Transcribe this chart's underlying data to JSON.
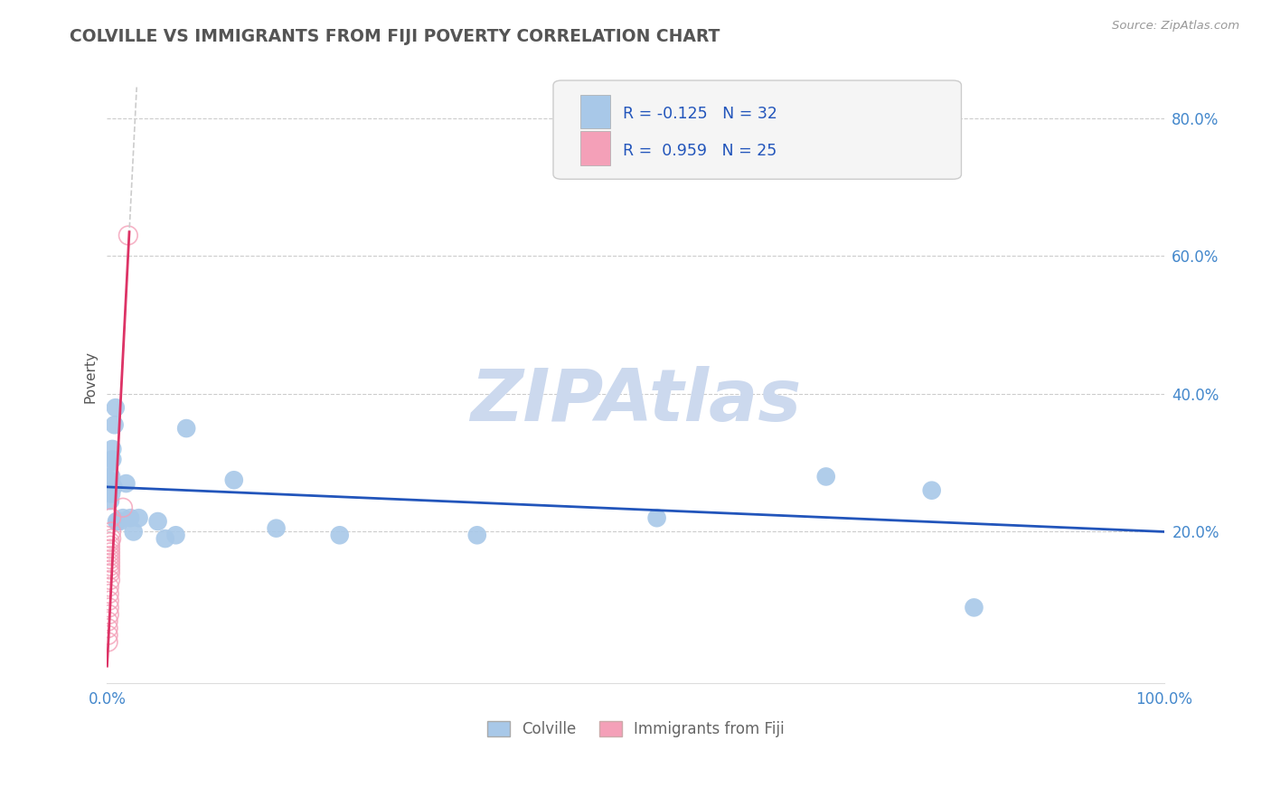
{
  "title": "COLVILLE VS IMMIGRANTS FROM FIJI POVERTY CORRELATION CHART",
  "source": "Source: ZipAtlas.com",
  "ylabel": "Poverty",
  "xlim": [
    0,
    1.0
  ],
  "ylim": [
    -0.02,
    0.87
  ],
  "xticks": [
    0.0,
    0.2,
    0.4,
    0.6,
    0.8,
    1.0
  ],
  "xtick_labels": [
    "0.0%",
    "",
    "",
    "",
    "",
    "100.0%"
  ],
  "yticks": [
    0.2,
    0.4,
    0.6,
    0.8
  ],
  "ytick_labels": [
    "20.0%",
    "40.0%",
    "60.0%",
    "80.0%"
  ],
  "colville_color": "#a8c8e8",
  "fiji_color": "#f4a0b8",
  "colville_line_color": "#2255bb",
  "fiji_line_color": "#dd3366",
  "fiji_dash_color": "#cccccc",
  "colville_R": -0.125,
  "colville_N": 32,
  "fiji_R": 0.959,
  "fiji_N": 25,
  "grid_color": "#cccccc",
  "background_color": "#ffffff",
  "title_color": "#555555",
  "watermark": "ZIPAtlas",
  "watermark_color": "#ccd9ee",
  "legend_label1": "Colville",
  "legend_label2": "Immigrants from Fiji",
  "colville_x": [
    0.001,
    0.002,
    0.002,
    0.003,
    0.003,
    0.004,
    0.004,
    0.005,
    0.005,
    0.006,
    0.007,
    0.008,
    0.009,
    0.01,
    0.012,
    0.015,
    0.018,
    0.022,
    0.025,
    0.03,
    0.048,
    0.055,
    0.065,
    0.075,
    0.12,
    0.16,
    0.22,
    0.35,
    0.52,
    0.68,
    0.78,
    0.82
  ],
  "colville_y": [
    0.275,
    0.3,
    0.275,
    0.26,
    0.245,
    0.28,
    0.255,
    0.305,
    0.32,
    0.265,
    0.355,
    0.38,
    0.215,
    0.215,
    0.215,
    0.22,
    0.27,
    0.22,
    0.2,
    0.22,
    0.215,
    0.19,
    0.195,
    0.35,
    0.275,
    0.205,
    0.195,
    0.195,
    0.22,
    0.28,
    0.26,
    0.09
  ],
  "fiji_x": [
    0.001,
    0.001,
    0.001,
    0.001,
    0.002,
    0.002,
    0.002,
    0.002,
    0.002,
    0.003,
    0.003,
    0.003,
    0.003,
    0.003,
    0.003,
    0.003,
    0.003,
    0.003,
    0.003,
    0.003,
    0.004,
    0.004,
    0.004,
    0.015,
    0.02
  ],
  "fiji_y": [
    0.04,
    0.05,
    0.06,
    0.07,
    0.08,
    0.09,
    0.1,
    0.11,
    0.12,
    0.13,
    0.14,
    0.145,
    0.15,
    0.155,
    0.16,
    0.165,
    0.17,
    0.175,
    0.18,
    0.185,
    0.19,
    0.2,
    0.22,
    0.235,
    0.63
  ]
}
